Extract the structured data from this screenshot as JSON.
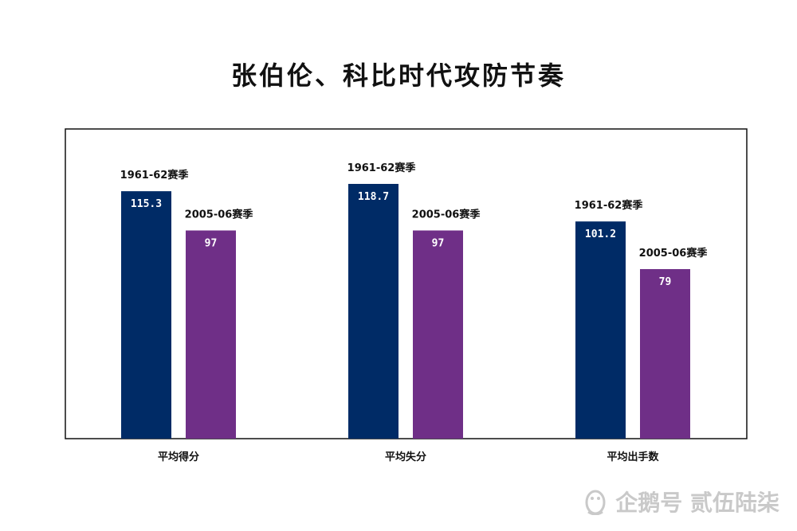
{
  "chart_data": {
    "type": "bar",
    "title": "张伯伦、科比时代攻防节奏",
    "categories": [
      "平均得分",
      "平均失分",
      "平均出手数"
    ],
    "series": [
      {
        "name": "1961-62赛季",
        "values": [
          115.3,
          118.7,
          101.2
        ],
        "labels": [
          "115.3",
          "118.7",
          "101.2"
        ],
        "color": "#002b66"
      },
      {
        "name": "2005-06赛季",
        "values": [
          97,
          97,
          79
        ],
        "labels": [
          "97",
          "97",
          "79"
        ],
        "color": "#6f2f87"
      }
    ],
    "ylim": [
      0,
      140
    ],
    "grid": false,
    "legend": "none (series names shown above each bar)"
  },
  "watermark": {
    "text": "企鹅号 贰伍陆柒",
    "icon": "penguin-logo-icon"
  }
}
